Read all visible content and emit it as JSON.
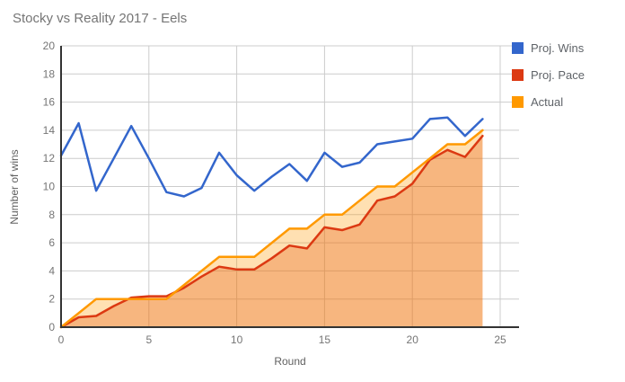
{
  "title": "Stocky vs Reality 2017 - Eels",
  "chart_data": {
    "type": "line",
    "title": "Stocky vs Reality 2017 - Eels",
    "xlabel": "Round",
    "ylabel": "Number of wins",
    "xlim": [
      0,
      26
    ],
    "ylim": [
      0,
      20
    ],
    "x_ticks": [
      0,
      5,
      10,
      15,
      20,
      25
    ],
    "y_ticks": [
      0,
      2,
      4,
      6,
      8,
      10,
      12,
      14,
      16,
      18,
      20
    ],
    "grid": true,
    "legend_position": "right",
    "x": [
      0,
      1,
      2,
      3,
      4,
      5,
      6,
      7,
      8,
      9,
      10,
      11,
      12,
      13,
      14,
      15,
      16,
      17,
      18,
      19,
      20,
      21,
      22,
      23,
      24
    ],
    "series": [
      {
        "name": "Proj. Wins",
        "type": "line",
        "color": "#3366CC",
        "values": [
          12.2,
          14.5,
          9.7,
          12.0,
          14.3,
          12.0,
          9.6,
          9.3,
          9.9,
          12.4,
          10.8,
          9.7,
          10.7,
          11.6,
          10.4,
          12.4,
          11.4,
          11.7,
          13.0,
          13.2,
          13.4,
          14.8,
          14.9,
          13.6,
          14.8
        ]
      },
      {
        "name": "Proj. Pace",
        "type": "area",
        "color": "#DC3912",
        "fill_opacity": 0.3,
        "values": [
          0,
          0.7,
          0.8,
          1.5,
          2.1,
          2.2,
          2.2,
          2.8,
          3.6,
          4.3,
          4.1,
          4.1,
          4.9,
          5.8,
          5.6,
          7.1,
          6.9,
          7.3,
          9.0,
          9.3,
          10.2,
          11.9,
          12.6,
          12.1,
          13.6
        ]
      },
      {
        "name": "Actual",
        "type": "area",
        "color": "#FF9900",
        "fill_opacity": 0.3,
        "values": [
          0,
          1,
          2,
          2,
          2,
          2,
          2,
          3,
          4,
          5,
          5,
          5,
          6,
          7,
          7,
          8,
          8,
          9,
          10,
          10,
          11,
          12,
          13,
          13,
          14
        ]
      }
    ],
    "colors": {
      "gridline": "#cccccc",
      "axis_line": "#333333",
      "tick_label": "#757575",
      "axis_title": "#616161",
      "title": "#757575"
    }
  }
}
